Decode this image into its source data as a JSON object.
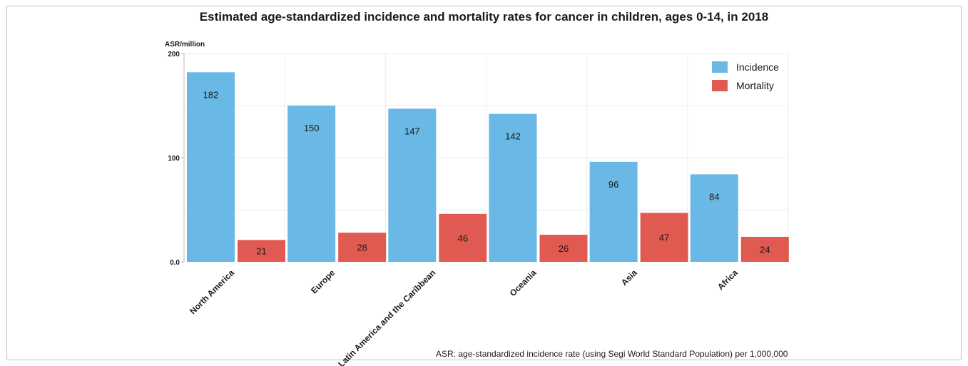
{
  "chart_data": {
    "type": "bar",
    "title": "Estimated age-standardized incidence and mortality rates for cancer in children, ages 0-14, in 2018",
    "ylabel": "ASR/million",
    "xlabel": "",
    "categories": [
      "North America",
      "Europe",
      "Latin America and the Caribbean",
      "Oceania",
      "Asia",
      "Africa"
    ],
    "series": [
      {
        "name": "Incidence",
        "color": "#69b8e5",
        "values": [
          182,
          150,
          147,
          142,
          96,
          84
        ]
      },
      {
        "name": "Mortality",
        "color": "#e15a52",
        "values": [
          21,
          28,
          46,
          26,
          47,
          24
        ]
      }
    ],
    "ylim": [
      0,
      200
    ],
    "yticks": [
      {
        "value": 0,
        "label": "0.0"
      },
      {
        "value": 100,
        "label": "100"
      },
      {
        "value": 200,
        "label": "200"
      }
    ],
    "grid": true,
    "legend_position": "top-right",
    "footnote": "ASR: age-standardized incidence rate (using Segi World Standard Population) per 1,000,000"
  }
}
